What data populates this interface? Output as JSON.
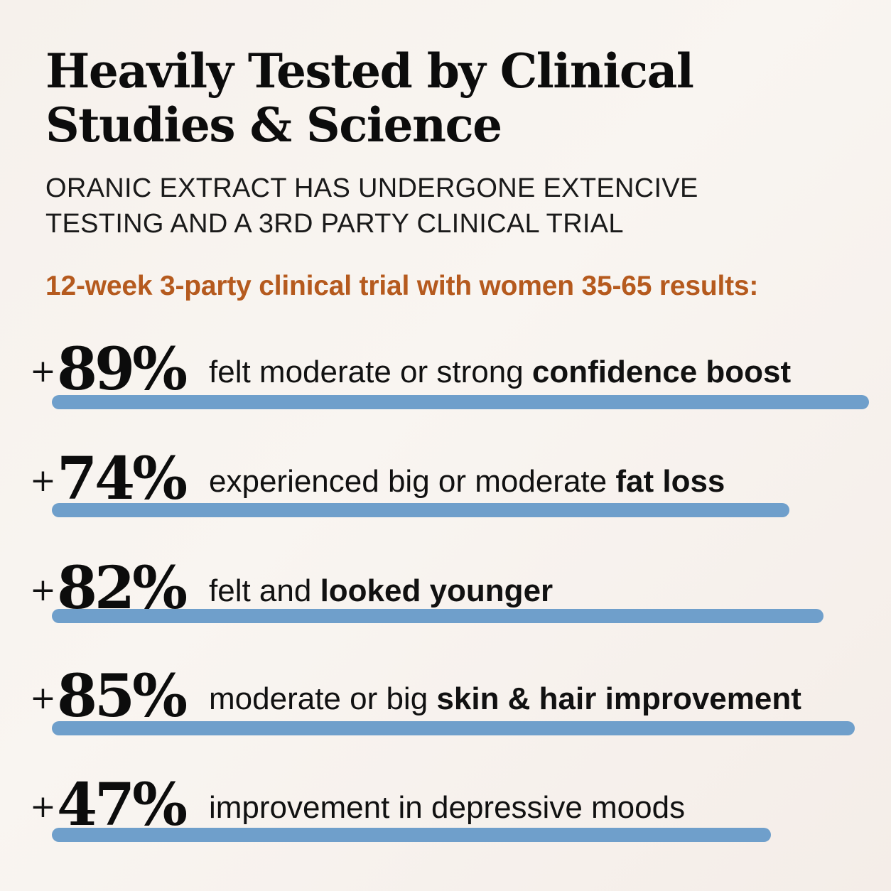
{
  "header": {
    "title_line1": "Heavily Tested by Clinical",
    "title_line2": "Studies & Science",
    "subtitle_line1": "ORANIC EXTRACT HAS UNDERGONE EXTENCIVE",
    "subtitle_line2": "TESTING AND A 3RD PARTY CLINICAL TRIAL",
    "trial_label": "12-week 3-party clinical trial with women 35-65 results:"
  },
  "colors": {
    "accent": "#b55a1e",
    "bar": "#6f9fcb",
    "text": "#0c0c0c"
  },
  "stats": [
    {
      "plus": "+",
      "value": "89%",
      "text": "felt moderate or strong ",
      "bold": "confidence boost",
      "percent": 89
    },
    {
      "plus": "+",
      "value": "74%",
      "text": "experienced big or moderate ",
      "bold": "fat loss",
      "percent": 74
    },
    {
      "plus": "+",
      "value": "82%",
      "text": "felt and ",
      "bold": "looked younger",
      "percent": 82
    },
    {
      "plus": "+",
      "value": "85%",
      "text": "moderate or big ",
      "bold": "skin & hair improvement",
      "percent": 85
    },
    {
      "plus": "+",
      "value": "47%",
      "text": "improvement in depressive moods",
      "bold": "",
      "percent": 47
    }
  ]
}
